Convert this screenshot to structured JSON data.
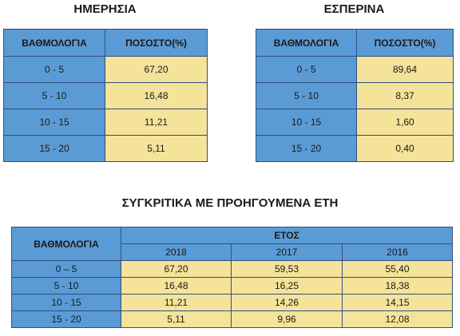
{
  "day": {
    "title": "ΗΜΕΡΗΣΙΑ",
    "col_grade": "ΒΑΘΜΟΛΟΓΙΑ",
    "col_percent": "ΠΟΣΟΣΤΟ(%)",
    "rows": [
      {
        "grade": "0 - 5",
        "percent": "67,20"
      },
      {
        "grade": "5 - 10",
        "percent": "16,48"
      },
      {
        "grade": "10 - 15",
        "percent": "11,21"
      },
      {
        "grade": "15 - 20",
        "percent": "5,11"
      }
    ]
  },
  "evening": {
    "title": "ΕΣΠΕΡΙΝΑ",
    "col_grade": "ΒΑΘΜΟΛΟΓΙΑ",
    "col_percent": "ΠΟΣΟΣΤΟ(%)",
    "rows": [
      {
        "grade": "0 - 5",
        "percent": "89,64"
      },
      {
        "grade": "5 - 10",
        "percent": "8,37"
      },
      {
        "grade": "10 - 15",
        "percent": "1,60"
      },
      {
        "grade": "15 - 20",
        "percent": "0,40"
      }
    ]
  },
  "comparison": {
    "title": "ΣΥΓΚΡΙΤΙΚΑ ΜΕ ΠΡΟΗΓΟΥΜΕΝΑ ΕΤΗ",
    "col_grade": "ΒΑΘΜΟΛΟΓΙΑ",
    "col_year": "ΕΤΟΣ",
    "years": [
      "2018",
      "2017",
      "2016"
    ],
    "rows": [
      {
        "grade": "0 – 5",
        "values": [
          "67,20",
          "59,53",
          "55,40"
        ]
      },
      {
        "grade": "5 - 10",
        "values": [
          "16,48",
          "16,25",
          "18,38"
        ]
      },
      {
        "grade": "10 - 15",
        "values": [
          "11,21",
          "14,26",
          "14,15"
        ]
      },
      {
        "grade": "15 - 20",
        "values": [
          "5,11",
          "9,96",
          "12,08"
        ]
      }
    ]
  },
  "colors": {
    "header_blue": "#5b9bd5",
    "cell_yellow": "#f5e39a",
    "border": "#2f4f7f"
  }
}
